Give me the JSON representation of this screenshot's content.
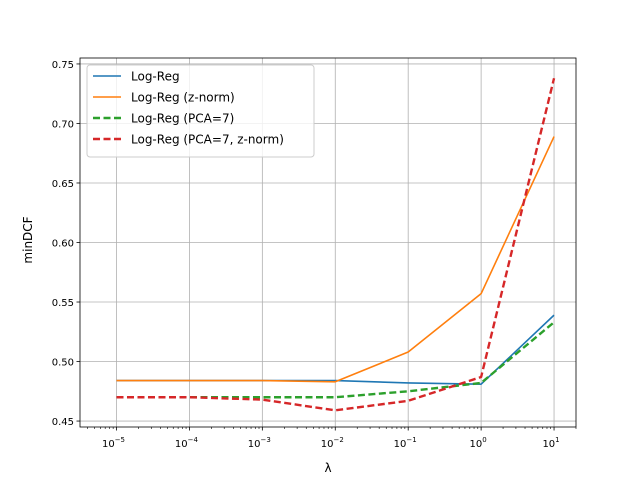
{
  "chart_data": {
    "type": "line",
    "title": "",
    "xlabel": "λ",
    "ylabel": "minDCF",
    "x_scale": "log",
    "xlim": [
      3.16e-06,
      20
    ],
    "ylim": [
      0.445,
      0.755
    ],
    "grid": true,
    "legend_position": "top-left",
    "x": [
      1e-05,
      0.0001,
      0.001,
      0.01,
      0.1,
      1,
      10
    ],
    "x_tick_labels": [
      {
        "base": "10",
        "exp": "−5"
      },
      {
        "base": "10",
        "exp": "−4"
      },
      {
        "base": "10",
        "exp": "−3"
      },
      {
        "base": "10",
        "exp": "−2"
      },
      {
        "base": "10",
        "exp": "−1"
      },
      {
        "base": "10",
        "exp": "0"
      },
      {
        "base": "10",
        "exp": "1"
      }
    ],
    "y_ticks": [
      0.45,
      0.5,
      0.55,
      0.6,
      0.65,
      0.7,
      0.75
    ],
    "y_tick_labels": [
      "0.45",
      "0.50",
      "0.55",
      "0.60",
      "0.65",
      "0.70",
      "0.75"
    ],
    "series": [
      {
        "name": "Log-Reg",
        "color": "#1f77b4",
        "dashed": false,
        "values": [
          0.484,
          0.484,
          0.484,
          0.484,
          0.482,
          0.481,
          0.539
        ]
      },
      {
        "name": "Log-Reg (z-norm)",
        "color": "#ff7f0e",
        "dashed": false,
        "values": [
          0.484,
          0.484,
          0.484,
          0.483,
          0.508,
          0.557,
          0.689
        ]
      },
      {
        "name": "Log-Reg (PCA=7)",
        "color": "#2ca02c",
        "dashed": true,
        "values": [
          0.47,
          0.47,
          0.47,
          0.47,
          0.475,
          0.482,
          0.533
        ]
      },
      {
        "name": "Log-Reg (PCA=7, z-norm)",
        "color": "#d62728",
        "dashed": true,
        "values": [
          0.47,
          0.47,
          0.468,
          0.459,
          0.467,
          0.487,
          0.738
        ]
      }
    ]
  }
}
